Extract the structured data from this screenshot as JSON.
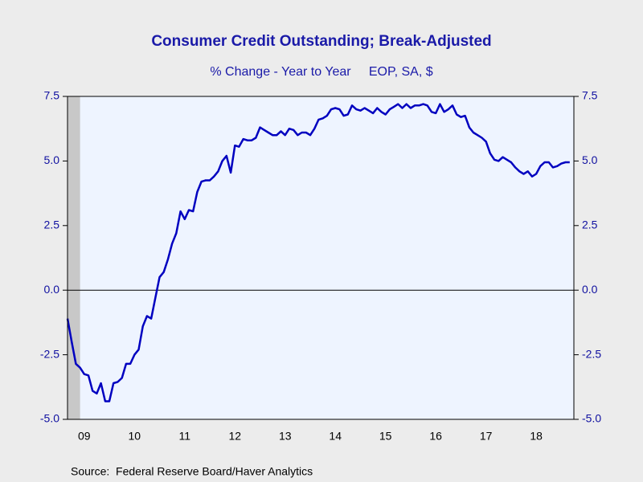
{
  "chart_data": {
    "type": "line",
    "title": "Consumer Credit Outstanding; Break-Adjusted",
    "subtitle": "% Change - Year to Year     EOP, SA, $",
    "source": "Source:  Federal Reserve Board/Haver Analytics",
    "x": [
      2009.167,
      2009.25,
      2009.333,
      2009.417,
      2009.5,
      2009.583,
      2009.667,
      2009.75,
      2009.833,
      2009.917,
      2010,
      2010.083,
      2010.167,
      2010.25,
      2010.333,
      2010.417,
      2010.5,
      2010.583,
      2010.667,
      2010.75,
      2010.833,
      2010.917,
      2011,
      2011.083,
      2011.167,
      2011.25,
      2011.333,
      2011.417,
      2011.5,
      2011.583,
      2011.667,
      2011.75,
      2011.833,
      2011.917,
      2012,
      2012.083,
      2012.167,
      2012.25,
      2012.333,
      2012.417,
      2012.5,
      2012.583,
      2012.667,
      2012.75,
      2012.833,
      2012.917,
      2013,
      2013.083,
      2013.167,
      2013.25,
      2013.333,
      2013.417,
      2013.5,
      2013.583,
      2013.667,
      2013.75,
      2013.833,
      2013.917,
      2014,
      2014.083,
      2014.167,
      2014.25,
      2014.333,
      2014.417,
      2014.5,
      2014.583,
      2014.667,
      2014.75,
      2014.833,
      2014.917,
      2015,
      2015.083,
      2015.167,
      2015.25,
      2015.333,
      2015.417,
      2015.5,
      2015.583,
      2015.667,
      2015.75,
      2015.833,
      2015.917,
      2016,
      2016.083,
      2016.167,
      2016.25,
      2016.333,
      2016.417,
      2016.5,
      2016.583,
      2016.667,
      2016.75,
      2016.833,
      2016.917,
      2017,
      2017.083,
      2017.167,
      2017.25,
      2017.333,
      2017.417,
      2017.5,
      2017.583,
      2017.667,
      2017.75,
      2017.833,
      2017.917,
      2018,
      2018.083,
      2018.167,
      2018.25,
      2018.333,
      2018.417,
      2018.5,
      2018.583,
      2018.667,
      2018.75,
      2018.833,
      2018.917,
      2019,
      2019.083,
      2019.167
    ],
    "series": [
      {
        "color": "#0000c0",
        "values": [
          -1.1,
          -2.0,
          -2.85,
          -3.0,
          -3.25,
          -3.3,
          -3.9,
          -4.0,
          -3.6,
          -4.3,
          -4.3,
          -3.6,
          -3.55,
          -3.4,
          -2.85,
          -2.85,
          -2.5,
          -2.3,
          -1.4,
          -1.0,
          -1.1,
          -0.3,
          0.5,
          0.7,
          1.2,
          1.8,
          2.2,
          3.05,
          2.75,
          3.1,
          3.05,
          3.8,
          4.2,
          4.25,
          4.25,
          4.4,
          4.6,
          5.0,
          5.2,
          4.55,
          5.6,
          5.55,
          5.85,
          5.8,
          5.8,
          5.9,
          6.3,
          6.2,
          6.1,
          6.0,
          6.0,
          6.15,
          6.0,
          6.25,
          6.2,
          6.0,
          6.1,
          6.1,
          6.0,
          6.25,
          6.6,
          6.65,
          6.75,
          7.0,
          7.05,
          7.0,
          6.75,
          6.8,
          7.15,
          7.0,
          6.95,
          7.05,
          6.95,
          6.85,
          7.05,
          6.9,
          6.8,
          7.0,
          7.1,
          7.2,
          7.05,
          7.2,
          7.05,
          7.15,
          7.15,
          7.2,
          7.15,
          6.9,
          6.85,
          7.2,
          6.9,
          7.0,
          7.15,
          6.8,
          6.7,
          6.75,
          6.3,
          6.1,
          6.0,
          5.9,
          5.75,
          5.3,
          5.05,
          5.0,
          5.15,
          5.05,
          4.95,
          4.75,
          4.6,
          4.5,
          4.6,
          4.4,
          4.5,
          4.8,
          4.95,
          4.95,
          4.75,
          4.8,
          4.9,
          4.95,
          4.95
        ]
      }
    ],
    "xlim": [
      2009.167,
      2019.25
    ],
    "xticks": [
      {
        "value": 2009.5,
        "label": "09"
      },
      {
        "value": 2010.5,
        "label": "10"
      },
      {
        "value": 2011.5,
        "label": "11"
      },
      {
        "value": 2012.5,
        "label": "12"
      },
      {
        "value": 2013.5,
        "label": "13"
      },
      {
        "value": 2014.5,
        "label": "14"
      },
      {
        "value": 2015.5,
        "label": "15"
      },
      {
        "value": 2016.5,
        "label": "16"
      },
      {
        "value": 2017.5,
        "label": "17"
      },
      {
        "value": 2018.5,
        "label": "18"
      }
    ],
    "ylim": [
      -5,
      7.5
    ],
    "yticks": [
      7.5,
      {
        "value": 5,
        "label": "5.0"
      },
      2.5,
      {
        "value": 0,
        "label": "0.0"
      },
      -2.5,
      {
        "value": -5,
        "label": "-5.0"
      }
    ],
    "y2lim": [
      -5,
      7.5
    ],
    "y2ticks": [
      7.5,
      {
        "value": 5,
        "label": "5.0"
      },
      2.5,
      {
        "value": 0,
        "label": "0.0"
      },
      -2.5,
      {
        "value": -5,
        "label": "-5.0"
      }
    ],
    "recession_shading": [
      2009.167,
      2009.417
    ],
    "zero_line": true
  }
}
